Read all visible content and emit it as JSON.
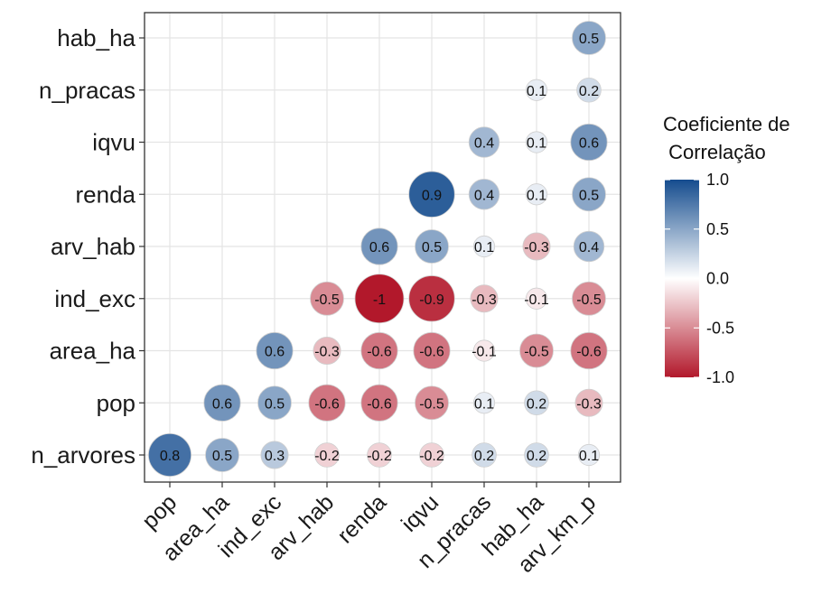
{
  "chart_data": {
    "type": "heatmap",
    "style": "lower-triangle correlation matrix, circles sized and colored by coefficient",
    "row_labels": [
      "hab_ha",
      "n_pracas",
      "iqvu",
      "renda",
      "arv_hab",
      "ind_exc",
      "area_ha",
      "pop",
      "n_arvores"
    ],
    "column_labels": [
      "pop",
      "area_ha",
      "ind_exc",
      "arv_hab",
      "renda",
      "iqvu",
      "n_pracas",
      "hab_ha",
      "arv_km_p"
    ],
    "matrix": [
      [
        null,
        null,
        null,
        null,
        null,
        null,
        null,
        null,
        0.5
      ],
      [
        null,
        null,
        null,
        null,
        null,
        null,
        null,
        0.1,
        0.2
      ],
      [
        null,
        null,
        null,
        null,
        null,
        null,
        0.4,
        0.1,
        0.6
      ],
      [
        null,
        null,
        null,
        null,
        null,
        0.9,
        0.4,
        0.1,
        0.5
      ],
      [
        null,
        null,
        null,
        null,
        0.6,
        0.5,
        0.1,
        -0.3,
        0.4
      ],
      [
        null,
        null,
        null,
        -0.5,
        -1,
        -0.9,
        -0.3,
        -0.1,
        -0.5
      ],
      [
        null,
        null,
        0.6,
        -0.3,
        -0.6,
        -0.6,
        -0.1,
        -0.5,
        -0.6
      ],
      [
        null,
        0.6,
        0.5,
        -0.6,
        -0.6,
        -0.5,
        0.1,
        0.2,
        -0.3
      ],
      [
        0.8,
        0.5,
        0.3,
        -0.2,
        -0.2,
        -0.2,
        0.2,
        0.2,
        0.1
      ]
    ],
    "legend": {
      "title_line1": "Coeficiente de",
      "title_line2": " Correlação",
      "ticks": [
        "1.0",
        "0.5",
        "0.0",
        "-0.5",
        "-1.0"
      ],
      "tick_values": [
        1.0,
        0.5,
        0.0,
        -0.5,
        -1.0
      ],
      "placement": "right"
    },
    "value_range": [
      -1,
      1
    ],
    "colors": {
      "positive": "#154C8E",
      "neutral": "#FFFFFF",
      "negative": "#B2182B"
    },
    "grid": true
  }
}
